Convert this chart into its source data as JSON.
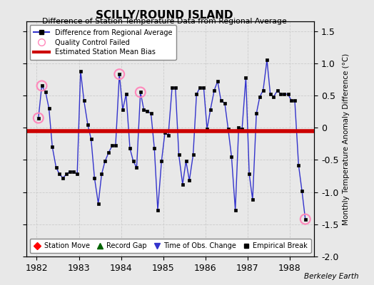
{
  "title": "SCILLY/ROUND ISLAND",
  "subtitle": "Difference of Station Temperature Data from Regional Average",
  "ylabel": "Monthly Temperature Anomaly Difference (°C)",
  "xlim": [
    1981.75,
    1988.58
  ],
  "ylim": [
    -2.0,
    1.65
  ],
  "yticks": [
    -2.0,
    -1.5,
    -1.0,
    -0.5,
    0.0,
    0.5,
    1.0,
    1.5
  ],
  "xtick_years": [
    1982,
    1983,
    1984,
    1985,
    1986,
    1987,
    1988
  ],
  "mean_bias": -0.05,
  "bg_color": "#e8e8e8",
  "line_color": "#3333cc",
  "bias_color": "#cc0000",
  "qc_color": "#ff88bb",
  "watermark": "Berkeley Earth",
  "data_x": [
    1982.04,
    1982.12,
    1982.21,
    1982.29,
    1982.37,
    1982.46,
    1982.54,
    1982.62,
    1982.71,
    1982.79,
    1982.87,
    1982.96,
    1983.04,
    1983.12,
    1983.21,
    1983.29,
    1983.37,
    1983.46,
    1983.54,
    1983.62,
    1983.71,
    1983.79,
    1983.87,
    1983.96,
    1984.04,
    1984.12,
    1984.21,
    1984.29,
    1984.37,
    1984.46,
    1984.54,
    1984.62,
    1984.71,
    1984.79,
    1984.87,
    1984.96,
    1985.04,
    1985.12,
    1985.21,
    1985.29,
    1985.37,
    1985.46,
    1985.54,
    1985.62,
    1985.71,
    1985.79,
    1985.87,
    1985.96,
    1986.04,
    1986.12,
    1986.21,
    1986.29,
    1986.37,
    1986.46,
    1986.54,
    1986.62,
    1986.71,
    1986.79,
    1986.87,
    1986.96,
    1987.04,
    1987.12,
    1987.21,
    1987.29,
    1987.37,
    1987.46,
    1987.54,
    1987.62,
    1987.71,
    1987.79,
    1987.87,
    1987.96,
    1988.04,
    1988.12,
    1988.21,
    1988.29,
    1988.37
  ],
  "data_y": [
    0.15,
    0.65,
    0.55,
    0.3,
    -0.3,
    -0.62,
    -0.72,
    -0.78,
    -0.72,
    -0.68,
    -0.68,
    -0.72,
    0.88,
    0.42,
    0.05,
    -0.18,
    -0.78,
    -1.18,
    -0.72,
    -0.52,
    -0.38,
    -0.28,
    -0.28,
    0.83,
    0.28,
    0.52,
    -0.32,
    -0.52,
    -0.62,
    0.55,
    0.28,
    0.26,
    0.22,
    -0.32,
    -1.28,
    -0.52,
    -0.08,
    -0.12,
    0.62,
    0.62,
    -0.42,
    -0.88,
    -0.52,
    -0.82,
    -0.42,
    0.52,
    0.62,
    0.62,
    -0.02,
    0.28,
    0.58,
    0.72,
    0.42,
    0.38,
    -0.02,
    -0.45,
    -1.28,
    0.0,
    -0.02,
    0.78,
    -0.72,
    -1.12,
    0.22,
    0.48,
    0.58,
    1.05,
    0.52,
    0.48,
    0.58,
    0.52,
    0.52,
    0.52,
    0.42,
    0.42,
    -0.58,
    -0.98,
    -1.42
  ],
  "qc_failed_x": [
    1982.04,
    1982.12,
    1983.96,
    1984.46,
    1988.37
  ],
  "qc_failed_y": [
    0.15,
    0.65,
    0.83,
    0.55,
    -1.42
  ]
}
